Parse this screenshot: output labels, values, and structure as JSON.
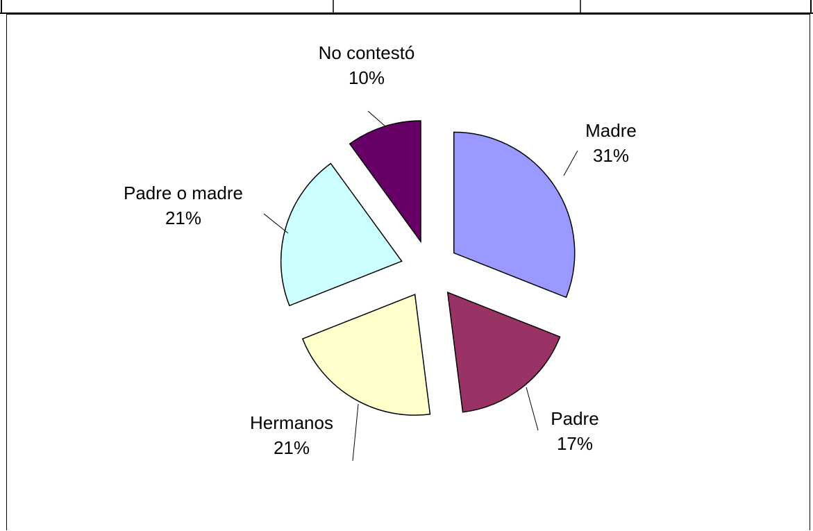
{
  "chart_data": {
    "type": "pie",
    "exploded": true,
    "legend": "none",
    "slices": [
      {
        "name": "Madre",
        "value": 31,
        "label": "31%",
        "color": "#9999FF"
      },
      {
        "name": "Padre",
        "value": 17,
        "label": "17%",
        "color": "#993366"
      },
      {
        "name": "Hermanos",
        "value": 21,
        "label": "21%",
        "color": "#FFFFCC"
      },
      {
        "name": "Padre o madre",
        "value": 21,
        "label": "21%",
        "color": "#CCFFFF"
      },
      {
        "name": "No contestó",
        "value": 10,
        "label": "10%",
        "color": "#660066"
      }
    ]
  },
  "colors": {
    "slice_border": "#000000",
    "background": "#FFFFFF"
  }
}
